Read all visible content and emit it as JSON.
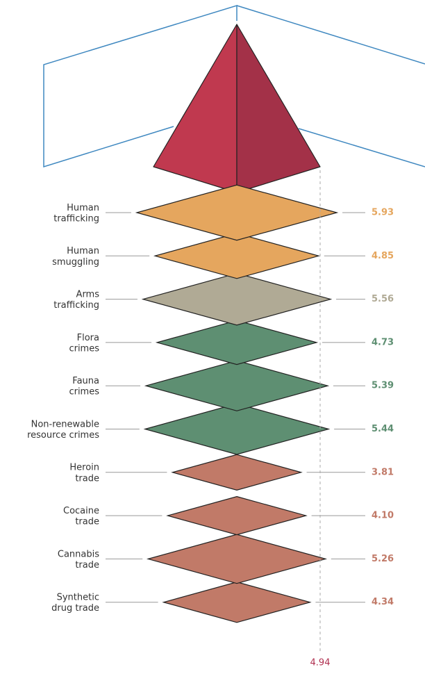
{
  "chart_data": {
    "type": "diamond",
    "categories": [
      [
        "Human",
        "trafficking"
      ],
      [
        "Human",
        "smuggling"
      ],
      [
        "Arms",
        "trafficking"
      ],
      [
        "Flora",
        "crimes"
      ],
      [
        "Fauna",
        "crimes"
      ],
      [
        "Non-renewable",
        "resource crimes"
      ],
      [
        "Heroin",
        "trade"
      ],
      [
        "Cocaine",
        "trade"
      ],
      [
        "Cannabis",
        "trade"
      ],
      [
        "Synthetic",
        "drug trade"
      ]
    ],
    "values": [
      5.93,
      4.85,
      5.56,
      4.73,
      5.39,
      5.44,
      3.81,
      4.1,
      5.26,
      4.34
    ],
    "value_labels": [
      "5.93",
      "4.85",
      "5.56",
      "4.73",
      "5.39",
      "5.44",
      "3.81",
      "4.10",
      "5.26",
      "4.34"
    ],
    "colors": [
      "#e5a65e",
      "#e5a65e",
      "#b0aa95",
      "#5e8f72",
      "#5e8f72",
      "#5e8f72",
      "#c17a68",
      "#c17a68",
      "#c17a68",
      "#c17a68"
    ],
    "reference_line": 4.94
  }
}
